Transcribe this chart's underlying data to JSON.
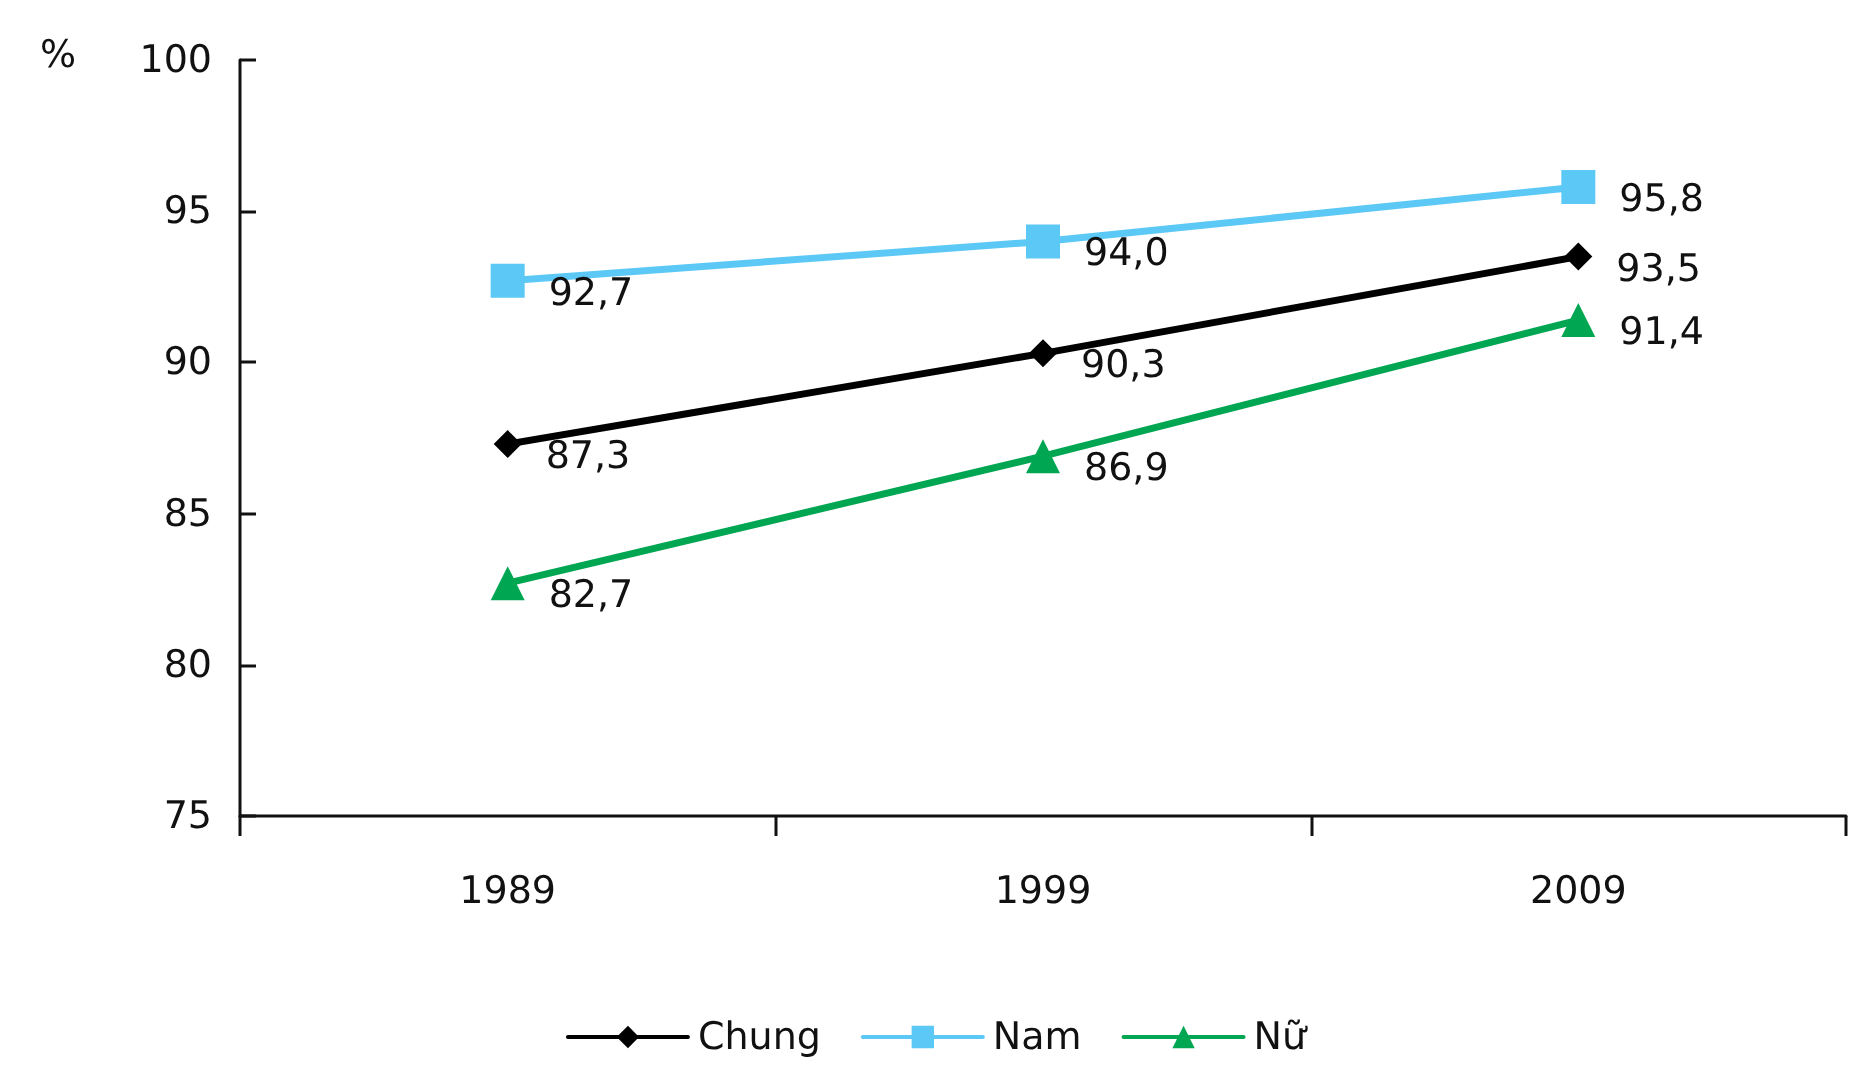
{
  "chart_data": {
    "type": "line",
    "ylabel": "%",
    "categories": [
      "1989",
      "1999",
      "2009"
    ],
    "series": [
      {
        "name": "Chung",
        "color": "#000000",
        "marker": "diamond",
        "values": [
          87.3,
          90.3,
          93.5
        ],
        "value_labels": [
          "87,3",
          "90,3",
          "93,5"
        ]
      },
      {
        "name": "Nam",
        "color": "#5bc8f5",
        "marker": "square",
        "values": [
          92.7,
          94.0,
          95.8
        ],
        "value_labels": [
          "92,7",
          "94,0",
          "95,8"
        ]
      },
      {
        "name": "Nữ",
        "color": "#00a651",
        "marker": "triangle",
        "values": [
          82.7,
          86.9,
          91.4
        ],
        "value_labels": [
          "82,7",
          "86,9",
          "91,4"
        ]
      }
    ],
    "ylim": [
      75,
      100
    ],
    "yticks": [
      75,
      80,
      85,
      90,
      95,
      100
    ],
    "grid": false,
    "legend": "bottom",
    "line_style": "solid"
  }
}
